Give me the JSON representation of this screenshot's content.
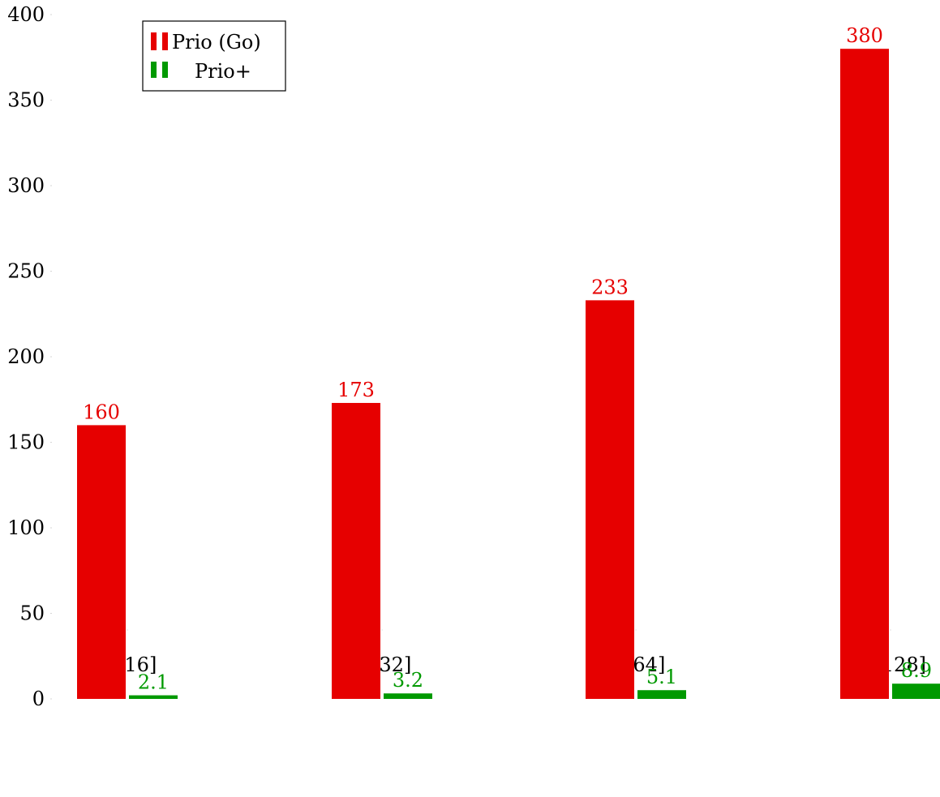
{
  "chart_data": {
    "type": "bar",
    "categories": [
      "[0-16]",
      "[0-32]",
      "[0-64]",
      "[0-128]"
    ],
    "series": [
      {
        "name": "Prio (Go)",
        "values": [
          160,
          173,
          233,
          380
        ],
        "color": "#e60000"
      },
      {
        "name": "Prio+",
        "values": [
          2.1,
          3.2,
          5.1,
          8.9
        ],
        "color": "#009900"
      }
    ],
    "data_labels": [
      [
        "160",
        "173",
        "233",
        "380"
      ],
      [
        "2.1",
        "3.2",
        "5.1",
        "8.9"
      ]
    ],
    "title": "",
    "xlabel": "",
    "ylabel": "",
    "ylim": [
      0,
      400
    ],
    "yticks": [
      0,
      50,
      100,
      150,
      200,
      250,
      300,
      350,
      400
    ],
    "grid": false,
    "legend_position": "top-left"
  }
}
